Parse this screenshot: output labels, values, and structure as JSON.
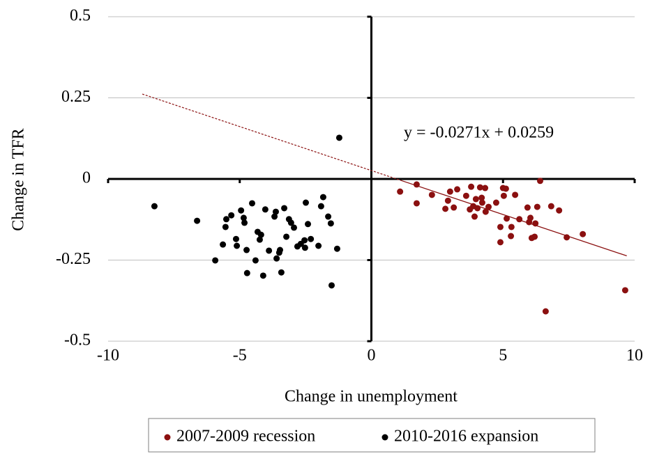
{
  "chart_data": {
    "type": "scatter",
    "xlabel": "Change in unemployment",
    "ylabel": "Change in TFR",
    "xlim": [
      -10,
      10
    ],
    "xticks": [
      -10,
      -5,
      0,
      5,
      10
    ],
    "ylim": [
      -0.5,
      0.5
    ],
    "yticks": [
      0.5,
      0.25,
      0,
      -0.25,
      -0.5
    ],
    "grid": true,
    "legend": "bottom",
    "series": [
      {
        "name": "2007-2009 recession",
        "color": "#8b1010",
        "x": [
          1.09,
          1.72,
          1.72,
          2.3,
          2.81,
          2.91,
          2.99,
          3.13,
          3.26,
          3.6,
          3.79,
          3.74,
          3.87,
          3.92,
          3.97,
          4.03,
          4.13,
          4.19,
          4.21,
          4.32,
          4.34,
          4.45,
          4.74,
          5.0,
          5.11,
          5.03,
          5.46,
          4.9,
          4.9,
          5.14,
          5.32,
          5.3,
          5.62,
          5.93,
          5.99,
          6.04,
          6.09,
          6.2,
          6.23,
          6.3,
          6.41,
          6.83,
          7.13,
          7.42,
          8.03,
          6.62,
          9.64
        ],
        "values": [
          -0.039,
          -0.017,
          -0.075,
          -0.049,
          -0.092,
          -0.067,
          -0.039,
          -0.088,
          -0.032,
          -0.052,
          -0.024,
          -0.094,
          -0.084,
          -0.116,
          -0.062,
          -0.09,
          -0.026,
          -0.058,
          -0.073,
          -0.028,
          -0.101,
          -0.086,
          -0.073,
          -0.028,
          -0.03,
          -0.052,
          -0.049,
          -0.148,
          -0.195,
          -0.122,
          -0.148,
          -0.176,
          -0.124,
          -0.088,
          -0.133,
          -0.12,
          -0.182,
          -0.178,
          -0.137,
          -0.086,
          -0.006,
          -0.084,
          -0.097,
          -0.18,
          -0.17,
          -0.408,
          -0.343
        ]
      },
      {
        "name": "2010-2016 expansion",
        "color": "#000000",
        "x": [
          -8.24,
          -6.62,
          -5.93,
          -5.64,
          -5.54,
          -5.51,
          -5.32,
          -5.14,
          -5.11,
          -4.95,
          -4.85,
          -4.82,
          -4.74,
          -4.72,
          -4.53,
          -4.4,
          -4.32,
          -4.24,
          -4.19,
          -4.11,
          -4.03,
          -3.89,
          -3.68,
          -3.63,
          -3.6,
          -3.5,
          -3.47,
          -3.42,
          -3.31,
          -3.23,
          -3.13,
          -3.05,
          -2.94,
          -2.81,
          -2.68,
          -2.54,
          -2.52,
          -2.49,
          -2.41,
          -2.3,
          -2.01,
          -1.91,
          -1.83,
          -1.64,
          -1.54,
          -1.51,
          -1.3,
          -1.22
        ],
        "values": [
          -0.084,
          -0.129,
          -0.251,
          -0.202,
          -0.148,
          -0.124,
          -0.112,
          -0.185,
          -0.206,
          -0.097,
          -0.12,
          -0.135,
          -0.219,
          -0.29,
          -0.075,
          -0.251,
          -0.163,
          -0.187,
          -0.172,
          -0.298,
          -0.094,
          -0.221,
          -0.116,
          -0.101,
          -0.245,
          -0.227,
          -0.219,
          -0.288,
          -0.09,
          -0.178,
          -0.124,
          -0.135,
          -0.15,
          -0.208,
          -0.2,
          -0.189,
          -0.212,
          -0.073,
          -0.139,
          -0.185,
          -0.206,
          -0.084,
          -0.056,
          -0.116,
          -0.137,
          -0.328,
          -0.215,
          0.127
        ]
      }
    ],
    "trendline": {
      "label": "y = -0.0271x + 0.0259",
      "slope": -0.0271,
      "intercept": 0.0259,
      "x_start": -8.7,
      "x_end": 9.7,
      "color": "#8b1010"
    }
  }
}
